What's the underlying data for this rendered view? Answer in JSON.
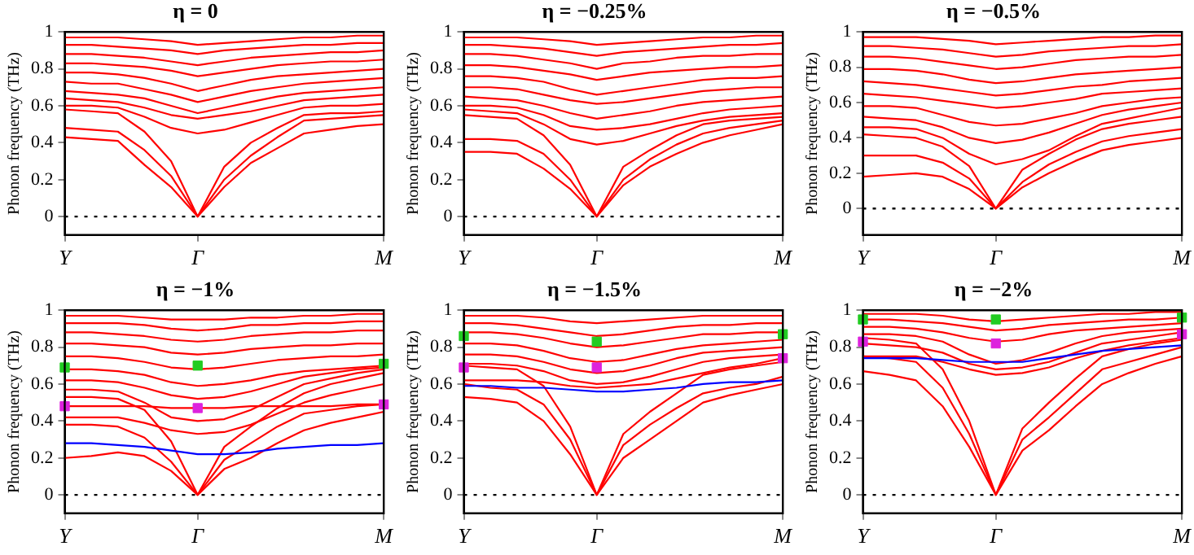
{
  "chart_data": [
    {
      "type": "line",
      "title": "η = 0",
      "ylabel": "Phonon frequency (THz)",
      "categories": [
        "Y",
        null,
        null,
        null,
        null,
        "Γ",
        null,
        null,
        null,
        null,
        null,
        null,
        "M"
      ],
      "ylim": [
        -0.1,
        1
      ],
      "yticks": [
        0,
        0.2,
        0.4,
        0.6,
        0.8,
        1
      ],
      "grid": false,
      "legend": false,
      "marker": "none",
      "ref_lines": [
        {
          "axis": "y",
          "value": 0,
          "color": "#000000",
          "line_style": "dotted"
        }
      ],
      "series": [
        {
          "color": "#ff0000",
          "values": [
            0.43,
            0.42,
            0.41,
            0.28,
            0.16,
            0,
            0.16,
            0.29,
            0.37,
            0.45,
            0.47,
            0.49,
            0.5
          ]
        },
        {
          "color": "#ff0000",
          "values": [
            0.48,
            0.47,
            0.46,
            0.36,
            0.22,
            0,
            0.2,
            0.33,
            0.43,
            0.52,
            0.53,
            0.54,
            0.55
          ]
        },
        {
          "color": "#ff0000",
          "values": [
            0.58,
            0.57,
            0.56,
            0.46,
            0.3,
            0,
            0.27,
            0.4,
            0.48,
            0.55,
            0.56,
            0.56,
            0.57
          ]
        },
        {
          "color": "#ff0000",
          "values": [
            0.6,
            0.6,
            0.59,
            0.54,
            0.48,
            0.45,
            0.47,
            0.51,
            0.55,
            0.59,
            0.6,
            0.6,
            0.61
          ]
        },
        {
          "color": "#ff0000",
          "values": [
            0.64,
            0.63,
            0.62,
            0.59,
            0.55,
            0.53,
            0.55,
            0.57,
            0.6,
            0.63,
            0.64,
            0.65,
            0.66
          ]
        },
        {
          "color": "#ff0000",
          "values": [
            0.68,
            0.67,
            0.66,
            0.64,
            0.6,
            0.56,
            0.59,
            0.62,
            0.65,
            0.67,
            0.68,
            0.69,
            0.7
          ]
        },
        {
          "color": "#ff0000",
          "values": [
            0.73,
            0.72,
            0.72,
            0.69,
            0.66,
            0.62,
            0.65,
            0.68,
            0.7,
            0.72,
            0.73,
            0.74,
            0.75
          ]
        },
        {
          "color": "#ff0000",
          "values": [
            0.78,
            0.78,
            0.77,
            0.75,
            0.72,
            0.68,
            0.71,
            0.74,
            0.76,
            0.77,
            0.78,
            0.79,
            0.8
          ]
        },
        {
          "color": "#ff0000",
          "values": [
            0.83,
            0.83,
            0.82,
            0.81,
            0.79,
            0.76,
            0.78,
            0.8,
            0.82,
            0.83,
            0.84,
            0.84,
            0.85
          ]
        },
        {
          "color": "#ff0000",
          "values": [
            0.88,
            0.88,
            0.87,
            0.86,
            0.84,
            0.82,
            0.84,
            0.86,
            0.87,
            0.88,
            0.89,
            0.89,
            0.9
          ]
        },
        {
          "color": "#ff0000",
          "values": [
            0.93,
            0.93,
            0.92,
            0.91,
            0.9,
            0.88,
            0.9,
            0.91,
            0.92,
            0.93,
            0.93,
            0.94,
            0.94
          ]
        },
        {
          "color": "#ff0000",
          "values": [
            0.97,
            0.97,
            0.97,
            0.96,
            0.95,
            0.93,
            0.94,
            0.95,
            0.96,
            0.97,
            0.97,
            0.98,
            0.98
          ]
        }
      ]
    },
    {
      "type": "line",
      "title": "η = −0.25%",
      "ylabel": "Phonon frequency (THz)",
      "categories": [
        "Y",
        null,
        null,
        null,
        null,
        "Γ",
        null,
        null,
        null,
        null,
        null,
        null,
        "M"
      ],
      "ylim": [
        -0.1,
        1
      ],
      "yticks": [
        0,
        0.2,
        0.4,
        0.6,
        0.8,
        1
      ],
      "grid": false,
      "legend": false,
      "marker": "none",
      "ref_lines": [
        {
          "axis": "y",
          "value": 0,
          "color": "#000000",
          "line_style": "dotted"
        }
      ],
      "series": [
        {
          "color": "#ff0000",
          "values": [
            0.35,
            0.35,
            0.34,
            0.26,
            0.15,
            0,
            0.17,
            0.27,
            0.34,
            0.4,
            0.44,
            0.47,
            0.5
          ]
        },
        {
          "color": "#ff0000",
          "values": [
            0.42,
            0.42,
            0.41,
            0.34,
            0.2,
            0,
            0.2,
            0.31,
            0.39,
            0.45,
            0.48,
            0.5,
            0.52
          ]
        },
        {
          "color": "#ff0000",
          "values": [
            0.55,
            0.54,
            0.53,
            0.44,
            0.28,
            0,
            0.27,
            0.36,
            0.44,
            0.5,
            0.52,
            0.53,
            0.54
          ]
        },
        {
          "color": "#ff0000",
          "values": [
            0.58,
            0.57,
            0.56,
            0.5,
            0.42,
            0.39,
            0.41,
            0.45,
            0.49,
            0.52,
            0.54,
            0.55,
            0.56
          ]
        },
        {
          "color": "#ff0000",
          "values": [
            0.6,
            0.6,
            0.59,
            0.55,
            0.49,
            0.47,
            0.48,
            0.5,
            0.53,
            0.56,
            0.58,
            0.59,
            0.6
          ]
        },
        {
          "color": "#ff0000",
          "values": [
            0.65,
            0.64,
            0.63,
            0.6,
            0.56,
            0.53,
            0.55,
            0.57,
            0.6,
            0.62,
            0.63,
            0.64,
            0.65
          ]
        },
        {
          "color": "#ff0000",
          "values": [
            0.7,
            0.7,
            0.69,
            0.66,
            0.63,
            0.61,
            0.62,
            0.64,
            0.66,
            0.68,
            0.69,
            0.7,
            0.7
          ]
        },
        {
          "color": "#ff0000",
          "values": [
            0.76,
            0.76,
            0.75,
            0.73,
            0.69,
            0.66,
            0.68,
            0.7,
            0.72,
            0.74,
            0.75,
            0.75,
            0.76
          ]
        },
        {
          "color": "#ff0000",
          "values": [
            0.82,
            0.82,
            0.81,
            0.79,
            0.77,
            0.74,
            0.76,
            0.78,
            0.79,
            0.8,
            0.81,
            0.81,
            0.82
          ]
        },
        {
          "color": "#ff0000",
          "values": [
            0.88,
            0.88,
            0.87,
            0.85,
            0.83,
            0.8,
            0.83,
            0.84,
            0.86,
            0.87,
            0.87,
            0.88,
            0.88
          ]
        },
        {
          "color": "#ff0000",
          "values": [
            0.93,
            0.93,
            0.92,
            0.91,
            0.89,
            0.87,
            0.89,
            0.9,
            0.91,
            0.92,
            0.93,
            0.93,
            0.94
          ]
        },
        {
          "color": "#ff0000",
          "values": [
            0.97,
            0.97,
            0.97,
            0.96,
            0.95,
            0.93,
            0.94,
            0.95,
            0.96,
            0.97,
            0.97,
            0.98,
            0.98
          ]
        }
      ]
    },
    {
      "type": "line",
      "title": "η = −0.5%",
      "ylabel": "Phonon frequency (THz)",
      "categories": [
        "Y",
        null,
        null,
        null,
        null,
        "Γ",
        null,
        null,
        null,
        null,
        null,
        null,
        "M"
      ],
      "ylim": [
        -0.15,
        1
      ],
      "yticks": [
        0,
        0.2,
        0.4,
        0.6,
        0.8,
        1
      ],
      "grid": false,
      "legend": false,
      "marker": "none",
      "ref_lines": [
        {
          "axis": "y",
          "value": 0,
          "color": "#000000",
          "line_style": "dotted"
        }
      ],
      "series": [
        {
          "color": "#ff0000",
          "values": [
            0.18,
            0.19,
            0.2,
            0.18,
            0.11,
            0,
            0.12,
            0.2,
            0.27,
            0.33,
            0.36,
            0.38,
            0.4
          ]
        },
        {
          "color": "#ff0000",
          "values": [
            0.3,
            0.3,
            0.3,
            0.26,
            0.17,
            0,
            0.15,
            0.25,
            0.32,
            0.38,
            0.41,
            0.43,
            0.45
          ]
        },
        {
          "color": "#ff0000",
          "values": [
            0.42,
            0.41,
            0.4,
            0.35,
            0.24,
            0,
            0.22,
            0.31,
            0.39,
            0.45,
            0.48,
            0.5,
            0.52
          ]
        },
        {
          "color": "#ff0000",
          "values": [
            0.46,
            0.46,
            0.45,
            0.4,
            0.31,
            0.25,
            0.28,
            0.33,
            0.41,
            0.48,
            0.51,
            0.54,
            0.57
          ]
        },
        {
          "color": "#ff0000",
          "values": [
            0.52,
            0.51,
            0.5,
            0.46,
            0.4,
            0.37,
            0.39,
            0.43,
            0.48,
            0.53,
            0.56,
            0.58,
            0.6
          ]
        },
        {
          "color": "#ff0000",
          "values": [
            0.58,
            0.58,
            0.57,
            0.53,
            0.49,
            0.47,
            0.48,
            0.51,
            0.54,
            0.58,
            0.6,
            0.62,
            0.63
          ]
        },
        {
          "color": "#ff0000",
          "values": [
            0.65,
            0.64,
            0.63,
            0.61,
            0.59,
            0.57,
            0.58,
            0.6,
            0.62,
            0.65,
            0.66,
            0.67,
            0.68
          ]
        },
        {
          "color": "#ff0000",
          "values": [
            0.72,
            0.71,
            0.7,
            0.68,
            0.66,
            0.64,
            0.65,
            0.67,
            0.69,
            0.7,
            0.72,
            0.73,
            0.74
          ]
        },
        {
          "color": "#ff0000",
          "values": [
            0.79,
            0.79,
            0.78,
            0.76,
            0.73,
            0.71,
            0.72,
            0.74,
            0.76,
            0.77,
            0.78,
            0.79,
            0.8
          ]
        },
        {
          "color": "#ff0000",
          "values": [
            0.86,
            0.86,
            0.85,
            0.83,
            0.81,
            0.79,
            0.8,
            0.82,
            0.84,
            0.85,
            0.86,
            0.86,
            0.87
          ]
        },
        {
          "color": "#ff0000",
          "values": [
            0.92,
            0.92,
            0.91,
            0.9,
            0.88,
            0.86,
            0.87,
            0.89,
            0.9,
            0.91,
            0.92,
            0.92,
            0.93
          ]
        },
        {
          "color": "#ff0000",
          "values": [
            0.97,
            0.97,
            0.97,
            0.96,
            0.95,
            0.93,
            0.94,
            0.95,
            0.96,
            0.97,
            0.97,
            0.98,
            0.98
          ]
        }
      ]
    },
    {
      "type": "line",
      "title": "η = −1%",
      "ylabel": "Phonon frequency (THz)",
      "categories": [
        "Y",
        null,
        null,
        null,
        null,
        "Γ",
        null,
        null,
        null,
        null,
        null,
        null,
        "M"
      ],
      "ylim": [
        -0.1,
        1
      ],
      "yticks": [
        0,
        0.2,
        0.4,
        0.6,
        0.8,
        1
      ],
      "grid": false,
      "legend": false,
      "marker": "none",
      "ref_lines": [
        {
          "axis": "y",
          "value": 0,
          "color": "#000000",
          "line_style": "dotted"
        }
      ],
      "series": [
        {
          "color": "#ff0000",
          "values": [
            0.2,
            0.21,
            0.23,
            0.21,
            0.13,
            0,
            0.14,
            0.2,
            0.28,
            0.35,
            0.39,
            0.42,
            0.45
          ]
        },
        {
          "color": "#ff0000",
          "values": [
            0.38,
            0.38,
            0.37,
            0.31,
            0.18,
            0,
            0.19,
            0.28,
            0.37,
            0.44,
            0.46,
            0.48,
            0.49
          ]
        },
        {
          "color": "#ff0000",
          "values": [
            0.53,
            0.53,
            0.52,
            0.46,
            0.29,
            0,
            0.26,
            0.37,
            0.47,
            0.55,
            0.6,
            0.63,
            0.66
          ]
        },
        {
          "color": "#ff0000",
          "values": [
            0.48,
            0.48,
            0.48,
            0.48,
            0.47,
            0.47,
            0.47,
            0.48,
            0.48,
            0.48,
            0.48,
            0.49,
            0.49
          ]
        },
        {
          "color": "#ff0000",
          "values": [
            0.42,
            0.42,
            0.42,
            0.39,
            0.35,
            0.33,
            0.34,
            0.38,
            0.44,
            0.5,
            0.54,
            0.57,
            0.6
          ]
        },
        {
          "color": "#ff0000",
          "values": [
            0.57,
            0.57,
            0.56,
            0.5,
            0.42,
            0.4,
            0.41,
            0.46,
            0.53,
            0.6,
            0.63,
            0.66,
            0.68
          ]
        },
        {
          "color": "#ff0000",
          "values": [
            0.62,
            0.62,
            0.61,
            0.58,
            0.54,
            0.52,
            0.53,
            0.56,
            0.6,
            0.64,
            0.66,
            0.68,
            0.69
          ]
        },
        {
          "color": "#ff0000",
          "values": [
            0.68,
            0.68,
            0.67,
            0.65,
            0.61,
            0.59,
            0.6,
            0.62,
            0.65,
            0.67,
            0.68,
            0.69,
            0.7
          ]
        },
        {
          "color": "#ff0000",
          "values": [
            0.75,
            0.75,
            0.74,
            0.72,
            0.69,
            0.68,
            0.69,
            0.71,
            0.73,
            0.74,
            0.75,
            0.75,
            0.76
          ]
        },
        {
          "color": "#ff0000",
          "values": [
            0.82,
            0.82,
            0.81,
            0.8,
            0.77,
            0.76,
            0.77,
            0.79,
            0.8,
            0.81,
            0.81,
            0.82,
            0.82
          ]
        },
        {
          "color": "#ff0000",
          "values": [
            0.88,
            0.88,
            0.87,
            0.86,
            0.84,
            0.83,
            0.84,
            0.86,
            0.87,
            0.88,
            0.88,
            0.89,
            0.89
          ]
        },
        {
          "color": "#ff0000",
          "values": [
            0.93,
            0.93,
            0.93,
            0.92,
            0.9,
            0.89,
            0.9,
            0.92,
            0.92,
            0.93,
            0.93,
            0.94,
            0.94
          ]
        },
        {
          "color": "#ff0000",
          "values": [
            0.97,
            0.97,
            0.97,
            0.96,
            0.95,
            0.95,
            0.95,
            0.96,
            0.96,
            0.97,
            0.97,
            0.98,
            0.98
          ]
        },
        {
          "color": "#0000ff",
          "values": [
            0.28,
            0.28,
            0.27,
            0.26,
            0.24,
            0.22,
            0.22,
            0.23,
            0.25,
            0.26,
            0.27,
            0.27,
            0.28
          ]
        },
        {
          "type": "scatter",
          "marker": "square",
          "color": "#22cc22",
          "values": [
            0.69,
            null,
            null,
            null,
            null,
            0.7,
            null,
            null,
            null,
            null,
            null,
            null,
            0.71
          ]
        },
        {
          "type": "scatter",
          "marker": "square",
          "color": "#dd22dd",
          "values": [
            0.48,
            null,
            null,
            null,
            null,
            0.47,
            null,
            null,
            null,
            null,
            null,
            null,
            0.49
          ]
        }
      ]
    },
    {
      "type": "line",
      "title": "η = −1.5%",
      "ylabel": "Phonon frequency (THz)",
      "categories": [
        "Y",
        null,
        null,
        null,
        null,
        "Γ",
        null,
        null,
        null,
        null,
        null,
        null,
        "M"
      ],
      "ylim": [
        -0.1,
        1
      ],
      "yticks": [
        0,
        0.2,
        0.4,
        0.6,
        0.8,
        1
      ],
      "grid": false,
      "legend": false,
      "marker": "none",
      "ref_lines": [
        {
          "axis": "y",
          "value": 0,
          "color": "#000000",
          "line_style": "dotted"
        }
      ],
      "series": [
        {
          "color": "#ff0000",
          "values": [
            0.53,
            0.52,
            0.5,
            0.4,
            0.22,
            0,
            0.2,
            0.3,
            0.4,
            0.5,
            0.54,
            0.57,
            0.6
          ]
        },
        {
          "color": "#ff0000",
          "values": [
            0.6,
            0.58,
            0.57,
            0.49,
            0.3,
            0,
            0.27,
            0.38,
            0.47,
            0.55,
            0.58,
            0.6,
            0.64
          ]
        },
        {
          "color": "#ff0000",
          "values": [
            0.7,
            0.69,
            0.68,
            0.59,
            0.37,
            0,
            0.33,
            0.45,
            0.55,
            0.65,
            0.68,
            0.7,
            0.72
          ]
        },
        {
          "color": "#ff0000",
          "values": [
            0.62,
            0.62,
            0.62,
            0.61,
            0.59,
            0.58,
            0.59,
            0.6,
            0.63,
            0.66,
            0.69,
            0.71,
            0.74
          ]
        },
        {
          "color": "#ff0000",
          "values": [
            0.71,
            0.71,
            0.7,
            0.67,
            0.62,
            0.6,
            0.61,
            0.64,
            0.68,
            0.72,
            0.74,
            0.75,
            0.76
          ]
        },
        {
          "color": "#ff0000",
          "values": [
            0.76,
            0.76,
            0.75,
            0.72,
            0.68,
            0.66,
            0.67,
            0.7,
            0.74,
            0.77,
            0.78,
            0.79,
            0.8
          ]
        },
        {
          "color": "#ff0000",
          "values": [
            0.82,
            0.82,
            0.81,
            0.78,
            0.74,
            0.72,
            0.73,
            0.76,
            0.79,
            0.81,
            0.82,
            0.83,
            0.84
          ]
        },
        {
          "color": "#ff0000",
          "values": [
            0.88,
            0.88,
            0.87,
            0.85,
            0.82,
            0.8,
            0.81,
            0.83,
            0.85,
            0.87,
            0.87,
            0.88,
            0.88
          ]
        },
        {
          "color": "#ff0000",
          "values": [
            0.93,
            0.93,
            0.92,
            0.9,
            0.88,
            0.86,
            0.87,
            0.89,
            0.91,
            0.92,
            0.92,
            0.93,
            0.93
          ]
        },
        {
          "color": "#ff0000",
          "values": [
            0.97,
            0.97,
            0.97,
            0.96,
            0.94,
            0.93,
            0.94,
            0.95,
            0.96,
            0.97,
            0.97,
            0.97,
            0.97
          ]
        },
        {
          "color": "#0000ff",
          "values": [
            0.59,
            0.59,
            0.58,
            0.58,
            0.57,
            0.56,
            0.56,
            0.57,
            0.58,
            0.6,
            0.61,
            0.61,
            0.62
          ]
        },
        {
          "type": "scatter",
          "marker": "square",
          "color": "#22cc22",
          "values": [
            0.86,
            null,
            null,
            null,
            null,
            0.83,
            null,
            null,
            null,
            null,
            null,
            null,
            0.87
          ]
        },
        {
          "type": "scatter",
          "marker": "square",
          "color": "#dd22dd",
          "values": [
            0.69,
            null,
            null,
            null,
            null,
            0.69,
            null,
            null,
            null,
            null,
            null,
            null,
            0.74
          ]
        }
      ]
    },
    {
      "type": "line",
      "title": "η = −2%",
      "ylabel": "Phonon frequency (THz)",
      "categories": [
        "Y",
        null,
        null,
        null,
        null,
        "Γ",
        null,
        null,
        null,
        null,
        null,
        null,
        "M"
      ],
      "ylim": [
        -0.1,
        1
      ],
      "yticks": [
        0,
        0.2,
        0.4,
        0.6,
        0.8,
        1
      ],
      "grid": false,
      "legend": false,
      "marker": "none",
      "ref_lines": [
        {
          "axis": "y",
          "value": 0,
          "color": "#000000",
          "line_style": "dotted"
        }
      ],
      "series": [
        {
          "color": "#ff0000",
          "values": [
            0.67,
            0.65,
            0.62,
            0.48,
            0.26,
            0,
            0.24,
            0.35,
            0.48,
            0.6,
            0.66,
            0.71,
            0.75
          ]
        },
        {
          "color": "#ff0000",
          "values": [
            0.75,
            0.74,
            0.72,
            0.58,
            0.33,
            0,
            0.3,
            0.42,
            0.55,
            0.68,
            0.72,
            0.76,
            0.8
          ]
        },
        {
          "color": "#ff0000",
          "values": [
            0.85,
            0.84,
            0.82,
            0.68,
            0.4,
            0,
            0.36,
            0.5,
            0.63,
            0.75,
            0.79,
            0.82,
            0.84
          ]
        },
        {
          "color": "#ff0000",
          "values": [
            0.75,
            0.75,
            0.75,
            0.72,
            0.68,
            0.65,
            0.66,
            0.69,
            0.74,
            0.78,
            0.81,
            0.83,
            0.85
          ]
        },
        {
          "color": "#ff0000",
          "values": [
            0.82,
            0.81,
            0.8,
            0.77,
            0.71,
            0.68,
            0.69,
            0.72,
            0.77,
            0.82,
            0.84,
            0.86,
            0.88
          ]
        },
        {
          "color": "#ff0000",
          "values": [
            0.87,
            0.87,
            0.86,
            0.83,
            0.76,
            0.71,
            0.73,
            0.77,
            0.82,
            0.86,
            0.88,
            0.89,
            0.9
          ]
        },
        {
          "color": "#ff0000",
          "values": [
            0.91,
            0.91,
            0.9,
            0.88,
            0.85,
            0.83,
            0.84,
            0.87,
            0.89,
            0.9,
            0.91,
            0.92,
            0.93
          ]
        },
        {
          "color": "#ff0000",
          "values": [
            0.95,
            0.95,
            0.94,
            0.93,
            0.91,
            0.89,
            0.9,
            0.92,
            0.93,
            0.94,
            0.95,
            0.95,
            0.96
          ]
        },
        {
          "color": "#ff0000",
          "values": [
            0.98,
            0.98,
            0.98,
            0.97,
            0.95,
            0.94,
            0.95,
            0.96,
            0.97,
            0.98,
            0.98,
            0.99,
            0.99
          ]
        },
        {
          "color": "#0000ff",
          "values": [
            0.74,
            0.74,
            0.74,
            0.73,
            0.72,
            0.72,
            0.72,
            0.74,
            0.76,
            0.78,
            0.79,
            0.8,
            0.81
          ]
        },
        {
          "type": "scatter",
          "marker": "square",
          "color": "#22cc22",
          "values": [
            0.95,
            null,
            null,
            null,
            null,
            0.95,
            null,
            null,
            null,
            null,
            null,
            null,
            0.96
          ]
        },
        {
          "type": "scatter",
          "marker": "square",
          "color": "#dd22dd",
          "values": [
            0.83,
            null,
            null,
            null,
            null,
            0.82,
            null,
            null,
            null,
            null,
            null,
            null,
            0.87
          ]
        }
      ]
    }
  ]
}
